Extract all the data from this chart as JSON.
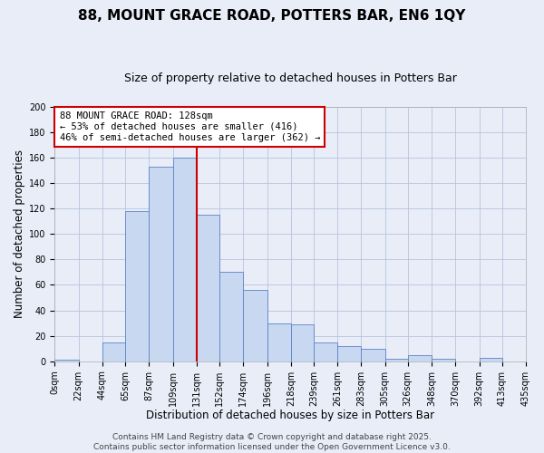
{
  "title": "88, MOUNT GRACE ROAD, POTTERS BAR, EN6 1QY",
  "subtitle": "Size of property relative to detached houses in Potters Bar",
  "xlabel": "Distribution of detached houses by size in Potters Bar",
  "ylabel": "Number of detached properties",
  "bin_edges": [
    0,
    22,
    44,
    65,
    87,
    109,
    131,
    152,
    174,
    196,
    218,
    239,
    261,
    283,
    305,
    326,
    348,
    370,
    392,
    413,
    435
  ],
  "bar_heights": [
    1,
    0,
    15,
    118,
    153,
    160,
    115,
    70,
    56,
    30,
    29,
    15,
    12,
    10,
    2,
    5,
    2,
    0,
    3,
    0
  ],
  "bar_color": "#c8d8f0",
  "bar_edge_color": "#5b82c8",
  "vline_x": 131,
  "vline_color": "#cc0000",
  "ylim": [
    0,
    200
  ],
  "yticks": [
    0,
    20,
    40,
    60,
    80,
    100,
    120,
    140,
    160,
    180,
    200
  ],
  "xtick_labels": [
    "0sqm",
    "22sqm",
    "44sqm",
    "65sqm",
    "87sqm",
    "109sqm",
    "131sqm",
    "152sqm",
    "174sqm",
    "196sqm",
    "218sqm",
    "239sqm",
    "261sqm",
    "283sqm",
    "305sqm",
    "326sqm",
    "348sqm",
    "370sqm",
    "392sqm",
    "413sqm",
    "435sqm"
  ],
  "annotation_title": "88 MOUNT GRACE ROAD: 128sqm",
  "annotation_line1": "← 53% of detached houses are smaller (416)",
  "annotation_line2": "46% of semi-detached houses are larger (362) →",
  "annotation_box_color": "#ffffff",
  "annotation_box_edge": "#cc0000",
  "footer_line1": "Contains HM Land Registry data © Crown copyright and database right 2025.",
  "footer_line2": "Contains public sector information licensed under the Open Government Licence v3.0.",
  "bg_color": "#e8edf8",
  "plot_bg_color": "#e8edf8",
  "grid_color": "#b8c4dc",
  "title_fontsize": 11,
  "subtitle_fontsize": 9,
  "label_fontsize": 8.5,
  "tick_fontsize": 7,
  "footer_fontsize": 6.5,
  "annotation_fontsize": 7.5
}
